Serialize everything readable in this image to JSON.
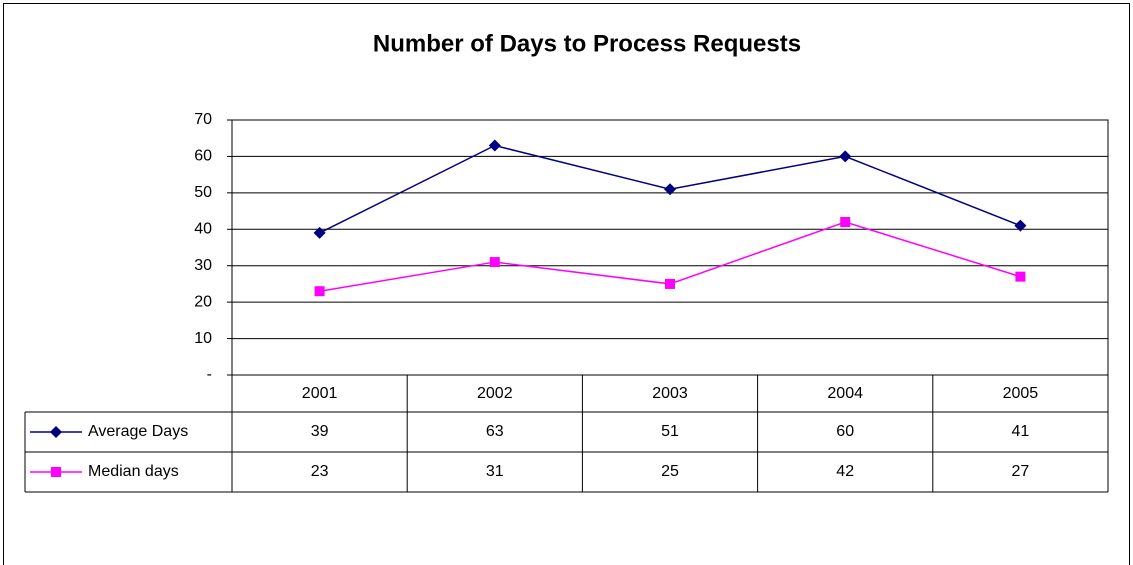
{
  "chart_data": {
    "type": "line",
    "title": "Number of Days to Process Requests",
    "categories": [
      "2001",
      "2002",
      "2003",
      "2004",
      "2005"
    ],
    "series": [
      {
        "name": "Average Days",
        "color": "#000080",
        "marker": "diamond",
        "values": [
          39,
          63,
          51,
          60,
          41
        ]
      },
      {
        "name": "Median days",
        "color": "#ff00ff",
        "marker": "square",
        "values": [
          23,
          31,
          25,
          42,
          27
        ]
      }
    ],
    "ylim": [
      0,
      70
    ],
    "yticks": [
      {
        "value": 0,
        "label": "-"
      },
      10,
      20,
      30,
      40,
      50,
      60,
      70
    ],
    "grid": true
  }
}
